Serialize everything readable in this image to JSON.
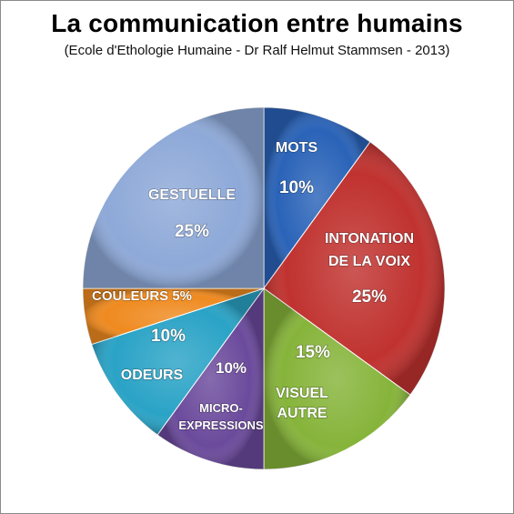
{
  "header": {
    "title": "La communication entre humains",
    "subtitle": "(Ecole d'Ethologie Humaine - Dr Ralf Helmut Stammsen - 2013)"
  },
  "chart_data": {
    "type": "pie",
    "title": "La communication entre humains",
    "subtitle": "(Ecole d'Ethologie Humaine - Dr Ralf Helmut Stammsen - 2013)",
    "slices": [
      {
        "label": [
          "MOTS"
        ],
        "value": 10,
        "value_label": "10%",
        "color": "#2a63b8"
      },
      {
        "label": [
          "INTONATION",
          "DE LA VOIX"
        ],
        "value": 25,
        "value_label": "25%",
        "color": "#c0322f"
      },
      {
        "label": [
          "VISUEL",
          "AUTRE"
        ],
        "value": 15,
        "value_label": "15%",
        "color": "#86b43a"
      },
      {
        "label": [
          "MICRO-",
          "EXPRESSIONS"
        ],
        "value": 10,
        "value_label": "10%",
        "color": "#6b4a9c"
      },
      {
        "label": [
          "ODEURS"
        ],
        "value": 10,
        "value_label": "10%",
        "color": "#2aa3c6"
      },
      {
        "label": [
          "COULEURS 5%"
        ],
        "value": 5,
        "value_label": "",
        "color": "#ef8a1f"
      },
      {
        "label": [
          "GESTUELLE"
        ],
        "value": 25,
        "value_label": "25%",
        "color": "#8ea9d8"
      }
    ],
    "start_angle": "12 o'clock",
    "direction": "clockwise",
    "legend": "none"
  }
}
